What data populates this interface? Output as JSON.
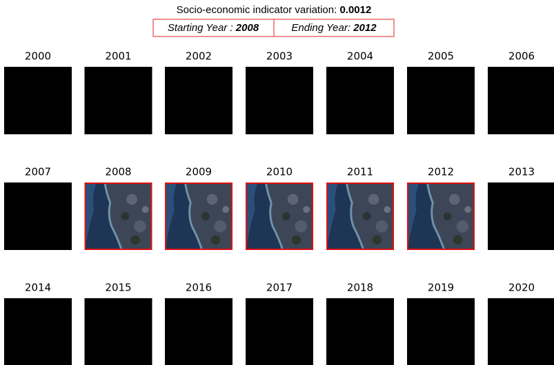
{
  "header": {
    "title": "Socio-economic indicator variation:",
    "value": "0.0012",
    "start_label": "Starting Year :",
    "start_year": "2008",
    "end_label": "Ending Year:",
    "end_year": "2012"
  },
  "tiles": [
    {
      "year": "2000",
      "highlighted": false
    },
    {
      "year": "2001",
      "highlighted": false
    },
    {
      "year": "2002",
      "highlighted": false
    },
    {
      "year": "2003",
      "highlighted": false
    },
    {
      "year": "2004",
      "highlighted": false
    },
    {
      "year": "2005",
      "highlighted": false
    },
    {
      "year": "2006",
      "highlighted": false
    },
    {
      "year": "2007",
      "highlighted": false
    },
    {
      "year": "2008",
      "highlighted": true
    },
    {
      "year": "2009",
      "highlighted": true
    },
    {
      "year": "2010",
      "highlighted": true
    },
    {
      "year": "2011",
      "highlighted": true
    },
    {
      "year": "2012",
      "highlighted": true
    },
    {
      "year": "2013",
      "highlighted": false
    },
    {
      "year": "2014",
      "highlighted": false
    },
    {
      "year": "2015",
      "highlighted": false
    },
    {
      "year": "2016",
      "highlighted": false
    },
    {
      "year": "2017",
      "highlighted": false
    },
    {
      "year": "2018",
      "highlighted": false
    },
    {
      "year": "2019",
      "highlighted": false
    },
    {
      "year": "2020",
      "highlighted": false
    }
  ]
}
